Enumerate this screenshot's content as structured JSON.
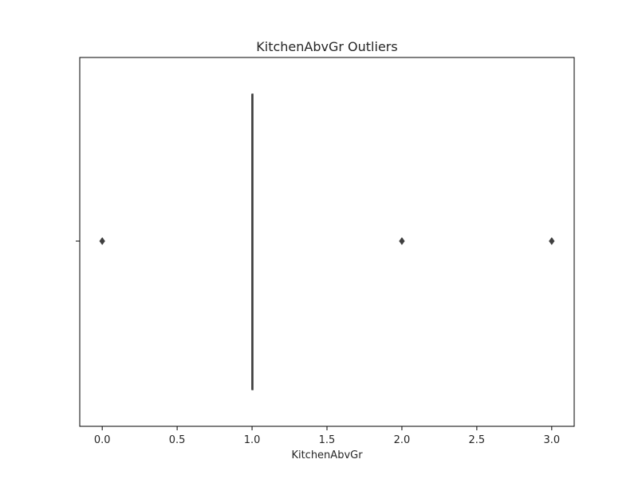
{
  "chart_data": {
    "type": "box",
    "title": "KitchenAbvGr Outliers",
    "xlabel": "KitchenAbvGr",
    "ylabel": "",
    "orientation": "horizontal",
    "xlim": [
      -0.15,
      3.15
    ],
    "xticks": [
      0.0,
      0.5,
      1.0,
      1.5,
      2.0,
      2.5,
      3.0
    ],
    "xtick_labels": [
      "0.0",
      "0.5",
      "1.0",
      "1.5",
      "2.0",
      "2.5",
      "3.0"
    ],
    "grid": false,
    "box": {
      "q1": 1,
      "median": 1,
      "q3": 1,
      "whisker_low": 1,
      "whisker_high": 1
    },
    "outliers": [
      0,
      2,
      3
    ],
    "colors": {
      "box": "#3f3f3f",
      "outlier": "#3f3f3f",
      "axis": "#000000",
      "text": "#262626"
    }
  }
}
